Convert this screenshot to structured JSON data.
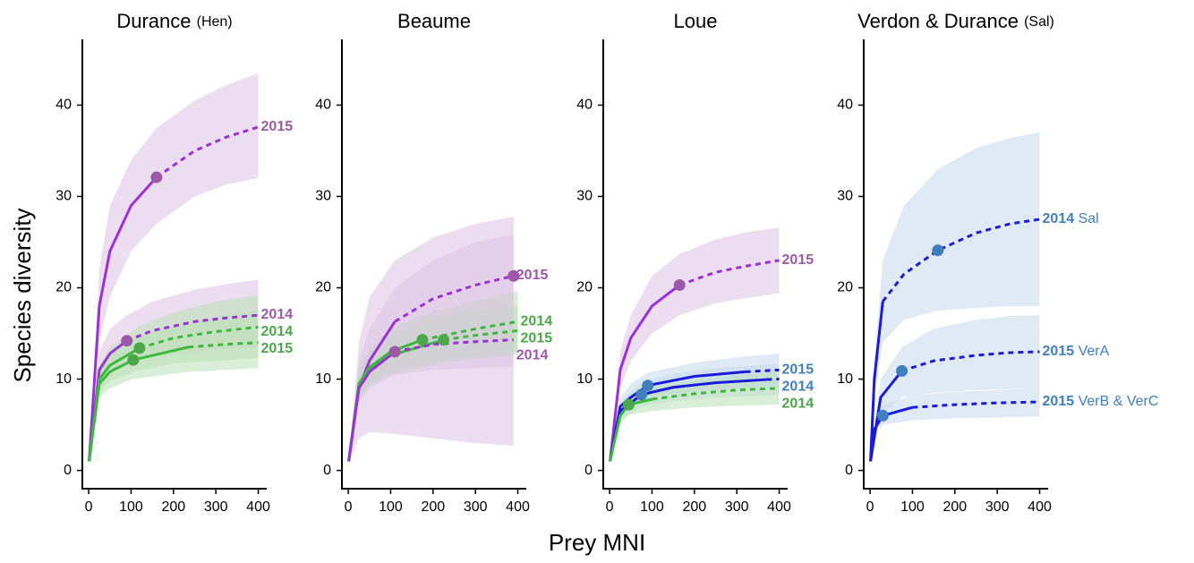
{
  "y_label": "Species diversity",
  "x_label": "Prey MNI",
  "chart_data": [
    {
      "type": "line",
      "title": "Durance",
      "title_suffix": "(Hen)",
      "xlim": [
        -15,
        420
      ],
      "ylim": [
        -2,
        47
      ],
      "xticks": [
        0,
        100,
        200,
        300,
        400
      ],
      "yticks": [
        0,
        10,
        20,
        30,
        40
      ],
      "series": [
        {
          "name": "2015",
          "color": "#9b30d9",
          "accent": "#9b59a8",
          "band": "#dcc3e3",
          "dashed_from": 160,
          "point_x": 160,
          "point_y": 32.1,
          "x": [
            1,
            25,
            50,
            100,
            160,
            250,
            325,
            400
          ],
          "values": [
            1,
            18,
            24,
            29,
            32.1,
            35,
            36.5,
            37.6
          ],
          "lower": [
            1,
            14,
            19,
            24,
            27,
            30,
            31.3,
            32
          ],
          "upper": [
            1,
            22,
            29,
            34,
            37.5,
            40.5,
            42.2,
            43.5
          ]
        },
        {
          "name": "2014",
          "color": "#9b30d9",
          "accent": "#9b59a8",
          "band": "#dcc3e3",
          "dashed_from": 90,
          "point_x": 90,
          "point_y": 14.2,
          "x": [
            1,
            25,
            50,
            90,
            150,
            250,
            325,
            400
          ],
          "values": [
            1,
            11,
            12.8,
            14.2,
            15.3,
            16.3,
            16.7,
            17
          ],
          "lower": [
            1,
            9,
            10.5,
            11.8,
            12.5,
            13,
            13.3,
            13.5
          ],
          "upper": [
            1,
            13,
            15.5,
            17,
            18.5,
            19.8,
            20.4,
            20.9
          ]
        },
        {
          "name": "2014",
          "color": "#3cb93c",
          "accent": "#4aa84a",
          "band": "#b9e0b5",
          "dashed_from": 120,
          "point_x": 120,
          "point_y": 13.4,
          "x": [
            1,
            25,
            50,
            120,
            200,
            300,
            400
          ],
          "values": [
            1,
            10,
            11.5,
            13.4,
            14.5,
            15.2,
            15.7
          ],
          "lower": [
            1,
            8.5,
            9.8,
            11,
            11.7,
            12,
            12.3
          ],
          "upper": [
            1,
            11.5,
            13.5,
            15.8,
            17.3,
            18.5,
            19.2
          ]
        },
        {
          "name": "2015",
          "color": "#3cb93c",
          "accent": "#4aa84a",
          "band": "#b9e0b5",
          "dashed_from": 235,
          "point_x": 105,
          "point_y": 12.1,
          "x": [
            1,
            25,
            50,
            105,
            235,
            320,
            400
          ],
          "values": [
            1,
            9.5,
            10.8,
            12.1,
            13.5,
            13.8,
            14
          ],
          "lower": [
            1,
            8,
            9,
            10,
            10.8,
            11,
            11.2
          ],
          "upper": [
            1,
            11,
            12.8,
            14.5,
            16.3,
            17,
            17.5
          ]
        }
      ]
    },
    {
      "type": "line",
      "title": "Beaume",
      "xlim": [
        -15,
        420
      ],
      "ylim": [
        -2,
        47
      ],
      "xticks": [
        0,
        100,
        200,
        300,
        400
      ],
      "yticks": [
        0,
        10,
        20,
        30,
        40
      ],
      "series": [
        {
          "name": "2015",
          "color": "#9b30d9",
          "accent": "#9b59a8",
          "band": "#dcc3e3",
          "dashed_from": 110,
          "point_x": 390,
          "point_y": 21.3,
          "x": [
            1,
            25,
            50,
            110,
            200,
            300,
            390
          ],
          "values": [
            1,
            9,
            12,
            16.3,
            18.8,
            20.3,
            21.3
          ],
          "lower": [
            1,
            3.5,
            4.2,
            4,
            3.5,
            3,
            2.7
          ],
          "upper": [
            1,
            14,
            19,
            23,
            25.5,
            27,
            27.8
          ]
        },
        {
          "name": "2014",
          "color": "#3cb93c",
          "accent": "#4aa84a",
          "band": "#b9e0b5",
          "dashed_from": 175,
          "point_x": 175,
          "point_y": 14.3,
          "x": [
            1,
            25,
            50,
            100,
            175,
            300,
            400
          ],
          "values": [
            1,
            9.5,
            11.3,
            13,
            14.3,
            15.5,
            16.3
          ],
          "lower": [
            1,
            8,
            9.5,
            10.8,
            11.8,
            12.5,
            13
          ],
          "upper": [
            1,
            11,
            13.3,
            15.5,
            17,
            18.6,
            19.6
          ]
        },
        {
          "name": "2015",
          "color": "#3cb93c",
          "accent": "#4aa84a",
          "band": "#b9e0b5",
          "dashed_from": 225,
          "point_x": 225,
          "point_y": 14.3,
          "x": [
            1,
            25,
            50,
            100,
            225,
            300,
            400
          ],
          "values": [
            1,
            9.3,
            11,
            12.6,
            14.3,
            14.8,
            15.3
          ],
          "lower": [
            1,
            8,
            9.3,
            10.5,
            11.8,
            12.2,
            12.6
          ],
          "upper": [
            1,
            10.8,
            12.8,
            14.8,
            16.8,
            17.5,
            18.1
          ]
        },
        {
          "name": "2014",
          "color": "#9b30d9",
          "accent": "#9b59a8",
          "band": "#dcc3e3",
          "dashed_from": 110,
          "point_x": 110,
          "point_y": 13,
          "x": [
            1,
            25,
            50,
            110,
            200,
            300,
            390
          ],
          "values": [
            1,
            9,
            10.8,
            13,
            13.8,
            14.1,
            14.3
          ],
          "lower": [
            1,
            7.5,
            9,
            10.5,
            11,
            11.2,
            11.3
          ],
          "upper": [
            1,
            12,
            15.5,
            20,
            23,
            25,
            25.8
          ]
        }
      ]
    },
    {
      "type": "line",
      "title": "Loue",
      "xlim": [
        -15,
        420
      ],
      "ylim": [
        -2,
        47
      ],
      "xticks": [
        0,
        100,
        200,
        300,
        400
      ],
      "yticks": [
        0,
        10,
        20,
        30,
        40
      ],
      "series": [
        {
          "name": "2015",
          "color": "#9b30d9",
          "accent": "#9b59a8",
          "band": "#dcc3e3",
          "dashed_from": 165,
          "point_x": 165,
          "point_y": 20.3,
          "x": [
            1,
            25,
            50,
            100,
            165,
            250,
            325,
            400
          ],
          "values": [
            1,
            11,
            14.5,
            18,
            20.3,
            21.7,
            22.4,
            23
          ],
          "lower": [
            1,
            9,
            12,
            15,
            17,
            18.3,
            18.9,
            19.4
          ],
          "upper": [
            1,
            13,
            17,
            21.3,
            23.7,
            25.3,
            26.1,
            26.6
          ]
        },
        {
          "name": "2015",
          "color": "#1a1adb",
          "accent": "#3f7fbf",
          "band": "#c6d9ec",
          "dashed_from": 320,
          "point_x": 90,
          "point_y": 9.3,
          "x": [
            1,
            25,
            50,
            90,
            200,
            320,
            400
          ],
          "values": [
            1,
            7,
            8,
            9.3,
            10.3,
            10.8,
            11
          ],
          "lower": [
            1,
            6,
            7,
            8,
            8.7,
            9,
            9.2
          ],
          "upper": [
            1,
            8,
            9.5,
            10.7,
            11.8,
            12.5,
            12.8
          ]
        },
        {
          "name": "2014",
          "color": "#1a1adb",
          "accent": "#3f7fbf",
          "band": "#c6d9ec",
          "dashed_from": 370,
          "point_x": 75,
          "point_y": 8.3,
          "x": [
            1,
            25,
            75,
            150,
            250,
            370,
            400
          ],
          "values": [
            1,
            6.5,
            8.3,
            9.1,
            9.6,
            9.95,
            10
          ],
          "lower": [
            1,
            5.5,
            7,
            7.6,
            8,
            8.2,
            8.3
          ],
          "upper": [
            1,
            7.5,
            9.6,
            10.6,
            11.2,
            11.6,
            11.7
          ]
        },
        {
          "name": "2014",
          "color": "#3cb93c",
          "accent": "#4aa84a",
          "band": "#b9e0b5",
          "dashed_from": 100,
          "point_x": 45,
          "point_y": 7.2,
          "x": [
            1,
            25,
            45,
            100,
            200,
            300,
            400
          ],
          "values": [
            1,
            6,
            7.2,
            7.8,
            8.4,
            8.8,
            9
          ],
          "lower": [
            1,
            5,
            6.1,
            6.5,
            6.9,
            7.1,
            7.2
          ],
          "upper": [
            1,
            7,
            8.3,
            9.1,
            9.9,
            10.4,
            10.8
          ]
        }
      ]
    },
    {
      "type": "line",
      "title": "Verdon & Durance",
      "title_suffix": "(Sal)",
      "xlim": [
        -15,
        420
      ],
      "ylim": [
        -2,
        47
      ],
      "xticks": [
        0,
        100,
        200,
        300,
        400
      ],
      "yticks": [
        0,
        10,
        20,
        30,
        40
      ],
      "series": [
        {
          "name": "2014",
          "name_suffix": "Sal",
          "color": "#1a1adb",
          "accent": "#3f7fbf",
          "band": "#c6d9ec",
          "dashed_from": 30,
          "point_x": 160,
          "point_y": 24.1,
          "x": [
            1,
            10,
            30,
            80,
            160,
            250,
            330,
            400
          ],
          "values": [
            1,
            10,
            18.5,
            21.5,
            24.1,
            26,
            27,
            27.5
          ],
          "lower": [
            1,
            8,
            14,
            16.5,
            17.5,
            17.8,
            18,
            18
          ],
          "upper": [
            1,
            12,
            23,
            29,
            33,
            35.3,
            36.4,
            37
          ]
        },
        {
          "name": "2015",
          "name_suffix": "VerA",
          "color": "#1a1adb",
          "accent": "#3f7fbf",
          "band": "#c6d9ec",
          "dashed_from": 75,
          "point_x": 75,
          "point_y": 10.9,
          "x": [
            1,
            25,
            75,
            150,
            250,
            330,
            400
          ],
          "values": [
            1,
            8,
            10.9,
            12,
            12.6,
            12.9,
            13
          ],
          "lower": [
            1,
            6,
            8,
            8.5,
            8.8,
            8.9,
            9
          ],
          "upper": [
            1,
            10,
            13.5,
            15.5,
            16.5,
            16.9,
            17
          ]
        },
        {
          "name": "2015",
          "name_suffix": "VerB & VerC",
          "color": "#1a1adb",
          "accent": "#3f7fbf",
          "band": "#c6d9ec",
          "dashed_from": 100,
          "point_x": 30,
          "point_y": 6,
          "x": [
            1,
            10,
            30,
            100,
            200,
            300,
            400
          ],
          "values": [
            1,
            4.5,
            6,
            6.9,
            7.2,
            7.4,
            7.5
          ],
          "lower": [
            1,
            4,
            5,
            5.5,
            5.7,
            5.8,
            5.9
          ],
          "upper": [
            1,
            5.5,
            7.2,
            8.2,
            8.6,
            8.8,
            9
          ]
        }
      ]
    }
  ]
}
